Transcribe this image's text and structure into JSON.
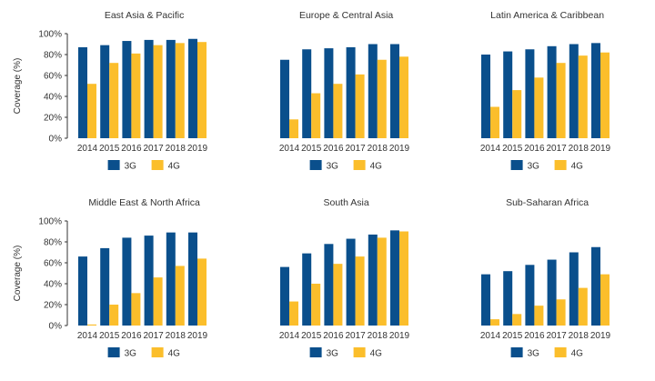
{
  "colors": {
    "3G": "#0a4f8c",
    "4G": "#fbbe2b",
    "axis": "#333333",
    "text": "#333333"
  },
  "chart_data": [
    {
      "type": "bar",
      "title": "East Asia & Pacific",
      "ylabel": "Coverage (%)",
      "categories": [
        "2014",
        "2015",
        "2016",
        "2017",
        "2018",
        "2019"
      ],
      "series": [
        {
          "name": "3G",
          "values": [
            87,
            89,
            93,
            94,
            94,
            95
          ]
        },
        {
          "name": "4G",
          "values": [
            52,
            72,
            81,
            89,
            91,
            92
          ]
        }
      ],
      "ylim": [
        0,
        100
      ],
      "yticks": [
        "0%",
        "20%",
        "40%",
        "60%",
        "80%",
        "100%"
      ],
      "grid": false,
      "legend": "bottom"
    },
    {
      "type": "bar",
      "title": "Europe & Central Asia",
      "ylabel": "",
      "categories": [
        "2014",
        "2015",
        "2016",
        "2017",
        "2018",
        "2019"
      ],
      "series": [
        {
          "name": "3G",
          "values": [
            75,
            85,
            86,
            87,
            90,
            90
          ]
        },
        {
          "name": "4G",
          "values": [
            18,
            43,
            52,
            61,
            75,
            78
          ]
        }
      ],
      "ylim": [
        0,
        100
      ],
      "yticks": [],
      "grid": false,
      "legend": "bottom"
    },
    {
      "type": "bar",
      "title": "Latin America & Caribbean",
      "ylabel": "",
      "categories": [
        "2014",
        "2015",
        "2016",
        "2017",
        "2018",
        "2019"
      ],
      "series": [
        {
          "name": "3G",
          "values": [
            80,
            83,
            85,
            88,
            90,
            91
          ]
        },
        {
          "name": "4G",
          "values": [
            30,
            46,
            58,
            72,
            79,
            82
          ]
        }
      ],
      "ylim": [
        0,
        100
      ],
      "yticks": [],
      "grid": false,
      "legend": "bottom"
    },
    {
      "type": "bar",
      "title": "Middle East & North Africa",
      "ylabel": "Coverage (%)",
      "categories": [
        "2014",
        "2015",
        "2016",
        "2017",
        "2018",
        "2019"
      ],
      "series": [
        {
          "name": "3G",
          "values": [
            66,
            74,
            84,
            86,
            89,
            89
          ]
        },
        {
          "name": "4G",
          "values": [
            1,
            20,
            31,
            46,
            57,
            64
          ]
        }
      ],
      "ylim": [
        0,
        100
      ],
      "yticks": [
        "0%",
        "20%",
        "40%",
        "60%",
        "80%",
        "100%"
      ],
      "grid": false,
      "legend": "bottom"
    },
    {
      "type": "bar",
      "title": "South Asia",
      "ylabel": "",
      "categories": [
        "2014",
        "2015",
        "2016",
        "2017",
        "2018",
        "2019"
      ],
      "series": [
        {
          "name": "3G",
          "values": [
            56,
            69,
            78,
            83,
            87,
            91
          ]
        },
        {
          "name": "4G",
          "values": [
            23,
            40,
            59,
            66,
            84,
            90
          ]
        }
      ],
      "ylim": [
        0,
        100
      ],
      "yticks": [],
      "grid": false,
      "legend": "bottom"
    },
    {
      "type": "bar",
      "title": "Sub-Saharan Africa",
      "ylabel": "",
      "categories": [
        "2014",
        "2015",
        "2016",
        "2017",
        "2018",
        "2019"
      ],
      "series": [
        {
          "name": "3G",
          "values": [
            49,
            52,
            58,
            63,
            70,
            75
          ]
        },
        {
          "name": "4G",
          "values": [
            6,
            11,
            19,
            25,
            36,
            49
          ]
        }
      ],
      "ylim": [
        0,
        100
      ],
      "yticks": [],
      "grid": false,
      "legend": "bottom"
    }
  ]
}
